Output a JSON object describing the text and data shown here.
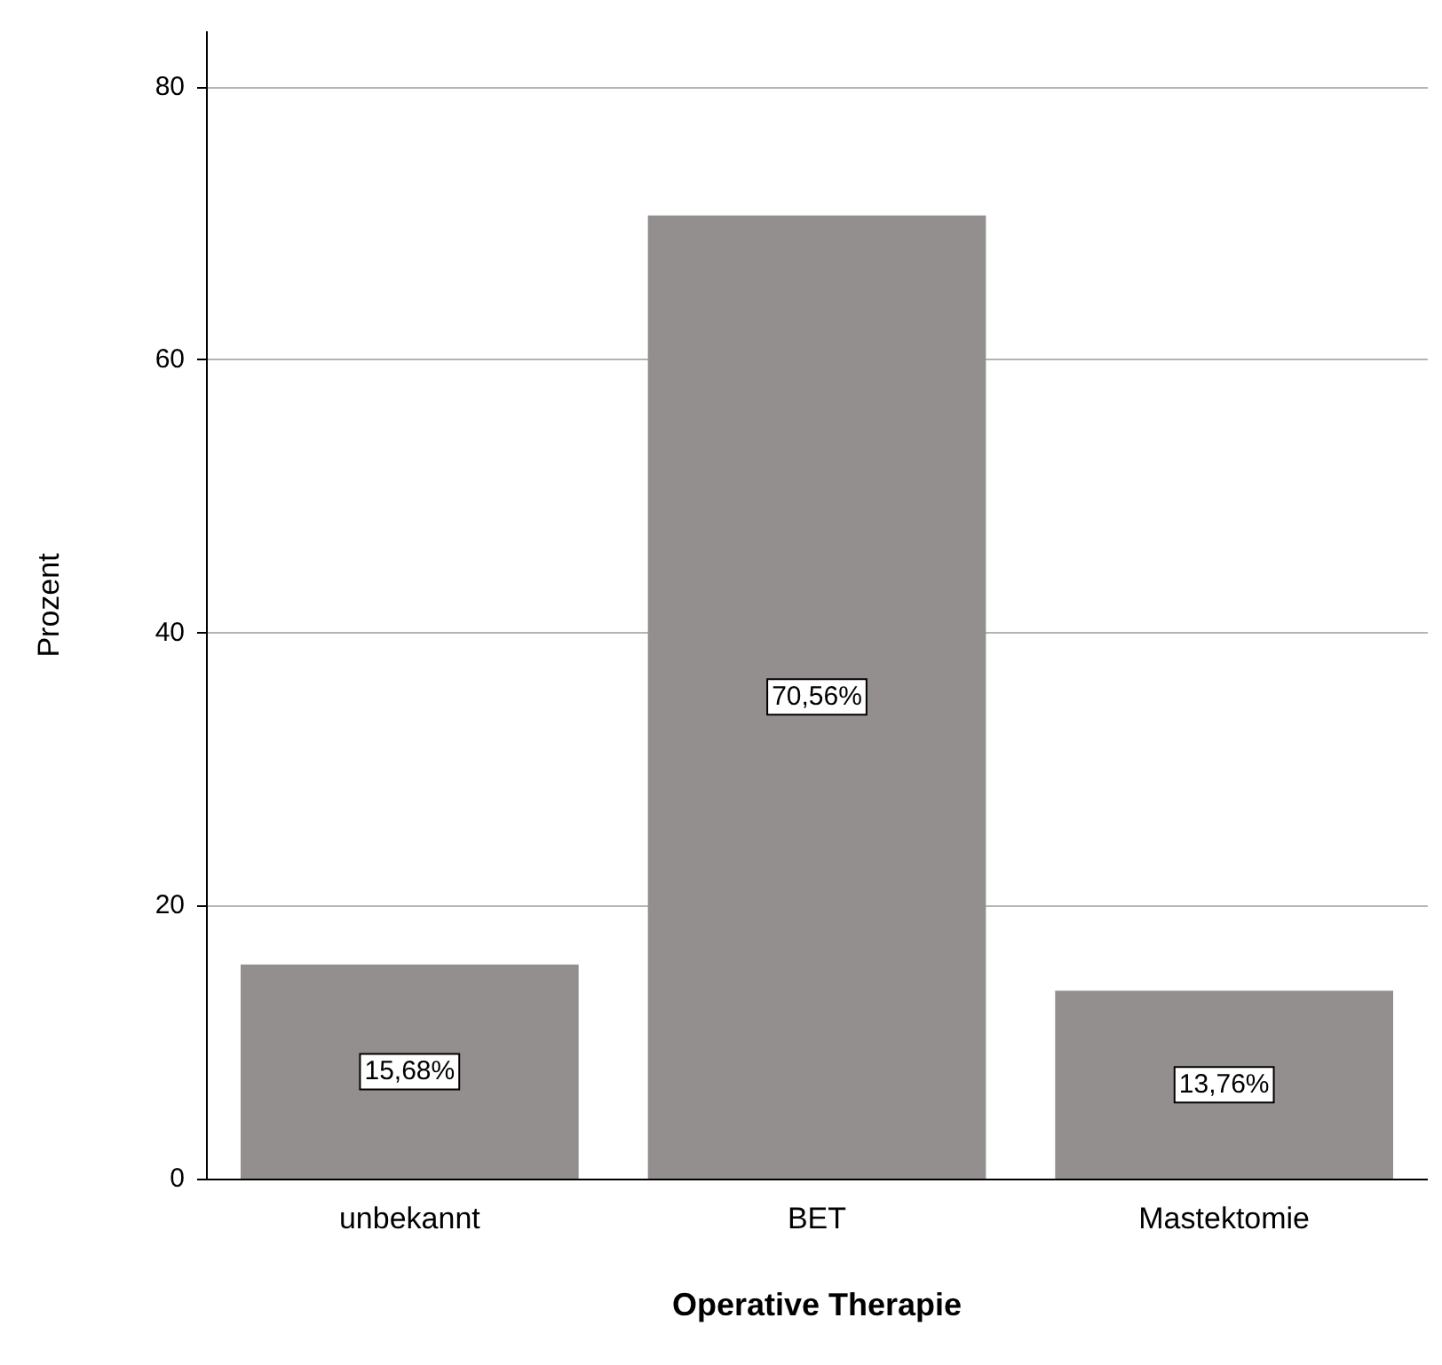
{
  "chart_data": {
    "type": "bar",
    "xlabel": "Operative Therapie",
    "ylabel": "Prozent",
    "categories": [
      "unbekannt",
      "BET",
      "Mastektomie"
    ],
    "values": [
      15.68,
      70.56,
      13.76
    ],
    "value_labels": [
      "15,68%",
      "70,56%",
      "13,76%"
    ],
    "color": "#948f8f",
    "ylim": [
      0,
      84
    ],
    "yticks": [
      0,
      20,
      40,
      60,
      80
    ],
    "grid": "y"
  }
}
